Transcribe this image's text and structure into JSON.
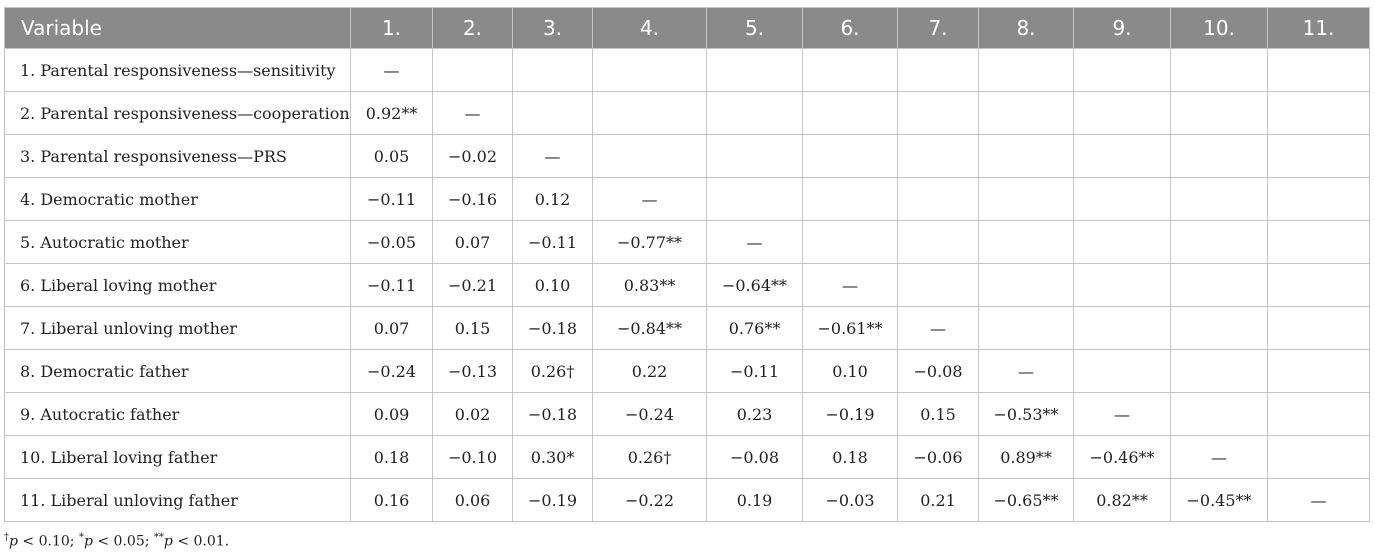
{
  "header": {
    "variable": "Variable",
    "columns": [
      "1.",
      "2.",
      "3.",
      "4.",
      "5.",
      "6.",
      "7.",
      "8.",
      "9.",
      "10.",
      "11."
    ]
  },
  "rows": [
    {
      "label": "1. Parental responsiveness—sensitivity",
      "cells": [
        "—",
        "",
        "",
        "",
        "",
        "",
        "",
        "",
        "",
        "",
        ""
      ]
    },
    {
      "label": "2. Parental responsiveness—cooperation",
      "cells": [
        "0.92**",
        "—",
        "",
        "",
        "",
        "",
        "",
        "",
        "",
        "",
        ""
      ]
    },
    {
      "label": "3. Parental responsiveness—PRS",
      "cells": [
        "0.05",
        "−0.02",
        "—",
        "",
        "",
        "",
        "",
        "",
        "",
        "",
        ""
      ]
    },
    {
      "label": "4. Democratic mother",
      "cells": [
        "−0.11",
        "−0.16",
        "0.12",
        "—",
        "",
        "",
        "",
        "",
        "",
        "",
        ""
      ]
    },
    {
      "label": "5. Autocratic mother",
      "cells": [
        "−0.05",
        "0.07",
        "−0.11",
        "−0.77**",
        "—",
        "",
        "",
        "",
        "",
        "",
        ""
      ]
    },
    {
      "label": "6. Liberal loving mother",
      "cells": [
        "−0.11",
        "−0.21",
        "0.10",
        "0.83**",
        "−0.64**",
        "—",
        "",
        "",
        "",
        "",
        ""
      ]
    },
    {
      "label": "7. Liberal unloving mother",
      "cells": [
        "0.07",
        "0.15",
        "−0.18",
        "−0.84**",
        "0.76**",
        "−0.61**",
        "—",
        "",
        "",
        "",
        ""
      ]
    },
    {
      "label": "8. Democratic father",
      "cells": [
        "−0.24",
        "−0.13",
        "0.26†",
        "0.22",
        "−0.11",
        "0.10",
        "−0.08",
        "—",
        "",
        "",
        ""
      ]
    },
    {
      "label": "9. Autocratic father",
      "cells": [
        "0.09",
        "0.02",
        "−0.18",
        "−0.24",
        "0.23",
        "−0.19",
        "0.15",
        "−0.53**",
        "—",
        "",
        ""
      ]
    },
    {
      "label": "10. Liberal loving father",
      "cells": [
        "0.18",
        "−0.10",
        "0.30*",
        "0.26†",
        "−0.08",
        "0.18",
        "−0.06",
        "0.89**",
        "−0.46**",
        "—",
        ""
      ]
    },
    {
      "label": "11. Liberal unloving father",
      "cells": [
        "0.16",
        "0.06",
        "−0.19",
        "−0.22",
        "0.19",
        "−0.03",
        "0.21",
        "−0.65**",
        "0.82**",
        "−0.45**",
        "—"
      ]
    }
  ],
  "footnote": {
    "dagger": "†",
    "p_symbol": "p",
    "part1": " < 0.10; ",
    "star1": "*",
    "part2": " < 0.05; ",
    "star2": "**",
    "part3": " < 0.01."
  }
}
